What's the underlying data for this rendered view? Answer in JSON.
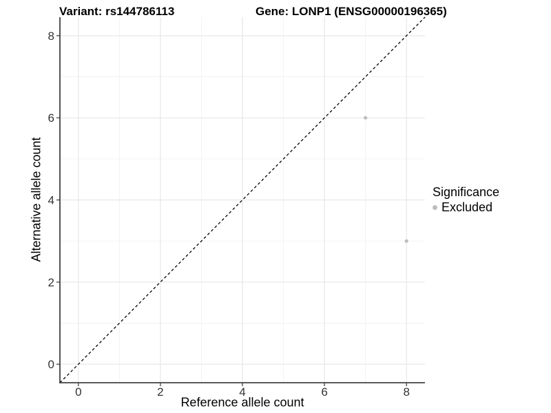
{
  "chart_data": {
    "type": "scatter",
    "title_left": "Variant: rs144786113",
    "title_right": "Gene: LONP1 (ENSG00000196365)",
    "xlabel": "Reference allele count",
    "ylabel": "Alternative allele count",
    "xlim": [
      -0.45,
      8.45
    ],
    "ylim": [
      -0.45,
      8.45
    ],
    "x_major_ticks": [
      0,
      2,
      4,
      6,
      8
    ],
    "y_major_ticks": [
      0,
      2,
      4,
      6,
      8
    ],
    "x_minor_ticks": [
      1,
      3,
      5,
      7
    ],
    "y_minor_ticks": [
      1,
      3,
      5,
      7
    ],
    "grid": "major+minor",
    "identity_line": {
      "description": "dashed y = x reference line",
      "style": "dashed",
      "color": "#000000",
      "from": [
        -0.45,
        -0.45
      ],
      "to": [
        8.45,
        8.45
      ]
    },
    "series": [
      {
        "name": "Excluded",
        "color": "#bdbdbd",
        "points": [
          {
            "x": 7,
            "y": 6
          },
          {
            "x": 8,
            "y": 3
          }
        ]
      }
    ],
    "legend": {
      "title": "Significance",
      "position": "right",
      "entries": [
        {
          "label": "Excluded",
          "color": "#bdbdbd"
        }
      ]
    }
  },
  "colors": {
    "background": "#ffffff",
    "grid_major": "#e7e7e7",
    "grid_minor": "#f2f2f2",
    "axis_line": "#404040",
    "tick_mark": "#404040",
    "tick_label": "#333333",
    "point": "#bdbdbd",
    "reference_line": "#000000"
  }
}
